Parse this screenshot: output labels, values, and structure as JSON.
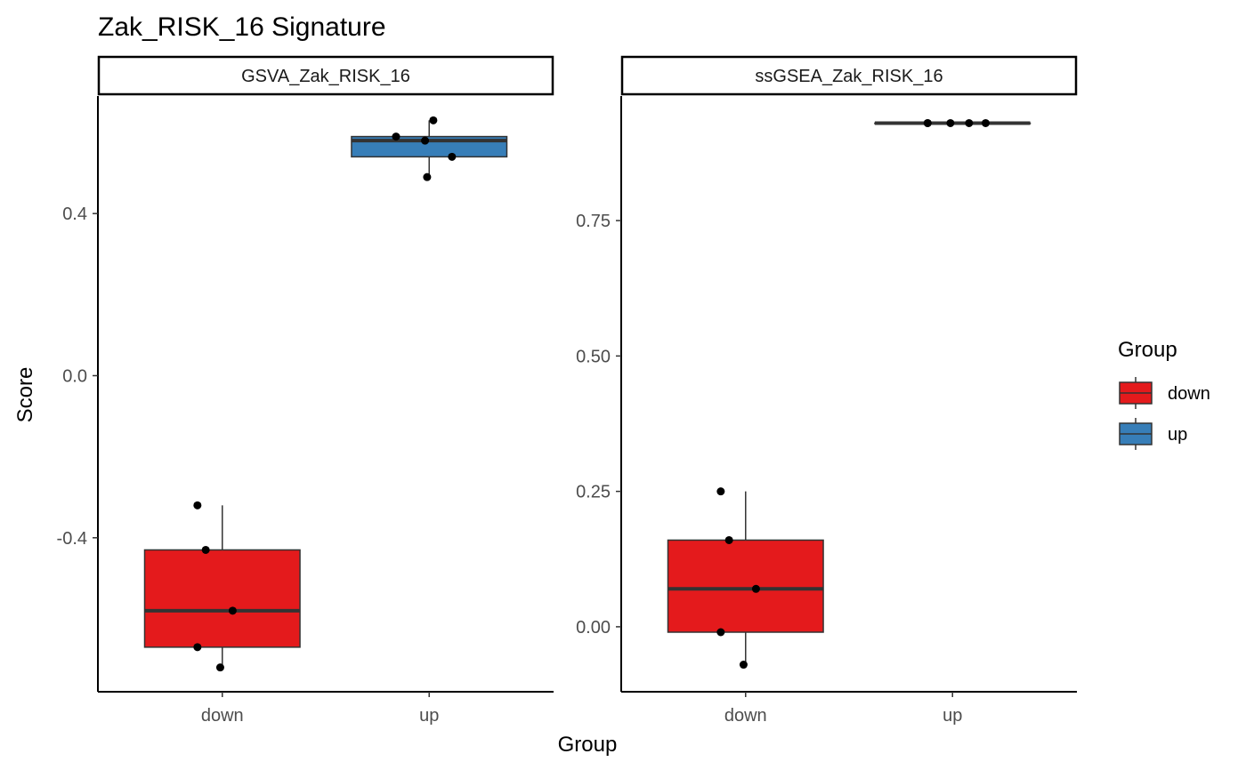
{
  "chart_data": {
    "type": "boxplot",
    "title": "Zak_RISK_16 Signature",
    "xlabel": "Group",
    "ylabel": "Score",
    "categories": [
      "down",
      "up"
    ],
    "legend": {
      "title": "Group",
      "position": "right",
      "entries": [
        {
          "label": "down",
          "color": "#E41A1C"
        },
        {
          "label": "up",
          "color": "#377EB8"
        }
      ]
    },
    "grid": false,
    "panels": [
      {
        "strip": "GSVA_Zak_RISK_16",
        "ylim": [
          -0.78,
          0.69
        ],
        "yticks": [
          -0.4,
          0.0,
          0.4
        ],
        "ytick_labels": [
          "-0.4",
          "0.0",
          "0.4"
        ],
        "boxes": [
          {
            "group": "down",
            "color": "#E41A1C",
            "lower_whisker": -0.72,
            "q1": -0.67,
            "median": -0.58,
            "q3": -0.43,
            "upper_whisker": -0.32,
            "points": [
              -0.32,
              -0.43,
              -0.58,
              -0.67,
              -0.72
            ]
          },
          {
            "group": "up",
            "color": "#377EB8",
            "lower_whisker": 0.49,
            "q1": 0.54,
            "median": 0.58,
            "q3": 0.59,
            "upper_whisker": 0.63,
            "points": [
              0.63,
              0.59,
              0.58,
              0.54,
              0.49
            ]
          }
        ]
      },
      {
        "strip": "ssGSEA_Zak_RISK_16",
        "ylim": [
          -0.12,
          0.98
        ],
        "yticks": [
          0.0,
          0.25,
          0.5,
          0.75
        ],
        "ytick_labels": [
          "0.00",
          "0.25",
          "0.50",
          "0.75"
        ],
        "boxes": [
          {
            "group": "down",
            "color": "#E41A1C",
            "lower_whisker": -0.07,
            "q1": -0.01,
            "median": 0.07,
            "q3": 0.16,
            "upper_whisker": 0.25,
            "points": [
              0.25,
              0.16,
              0.07,
              -0.01,
              -0.07
            ]
          },
          {
            "group": "up",
            "color": "#377EB8",
            "lower_whisker": 0.93,
            "q1": 0.93,
            "median": 0.93,
            "q3": 0.93,
            "upper_whisker": 0.93,
            "points": [
              0.93,
              0.93,
              0.93,
              0.93,
              0.93
            ]
          }
        ]
      }
    ]
  }
}
